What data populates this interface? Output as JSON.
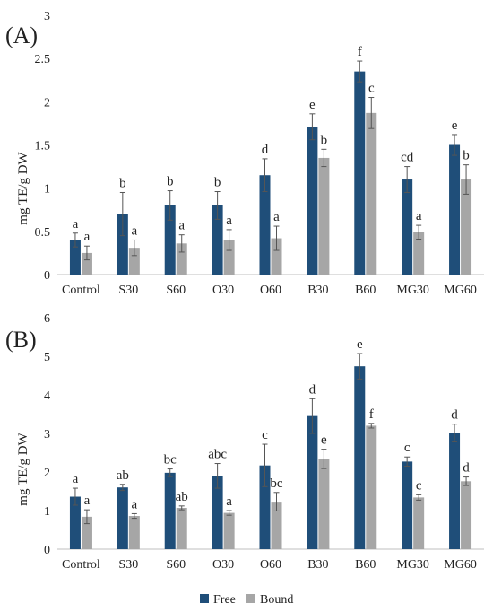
{
  "chart_data": [
    {
      "panel_label": "(A)",
      "type": "bar",
      "categories": [
        "Control",
        "S30",
        "S60",
        "O30",
        "O60",
        "B30",
        "B60",
        "MG30",
        "MG60"
      ],
      "ylabel": "mg TE/g DW",
      "ylim": [
        0,
        3
      ],
      "yticks": [
        "0",
        "0.5",
        "1",
        "1.5",
        "2",
        "2.5",
        "3"
      ],
      "grid": false,
      "series": [
        {
          "name": "Free",
          "color": "#1f4e79",
          "values": [
            0.4,
            0.7,
            0.8,
            0.8,
            1.15,
            1.71,
            2.35,
            1.1,
            1.5
          ],
          "errors": [
            0.08,
            0.25,
            0.17,
            0.16,
            0.19,
            0.15,
            0.12,
            0.15,
            0.12
          ],
          "letters": [
            "a",
            "b",
            "b",
            "b",
            "d",
            "e",
            "f",
            "cd",
            "e"
          ]
        },
        {
          "name": "Bound",
          "color": "#a6a6a6",
          "values": [
            0.25,
            0.31,
            0.36,
            0.4,
            0.42,
            1.35,
            1.87,
            0.49,
            1.1
          ],
          "errors": [
            0.08,
            0.09,
            0.1,
            0.12,
            0.14,
            0.1,
            0.18,
            0.08,
            0.17
          ],
          "letters": [
            "a",
            "a",
            "a",
            "a",
            "a",
            "b",
            "c",
            "a",
            "b"
          ]
        }
      ]
    },
    {
      "panel_label": "(B)",
      "type": "bar",
      "categories": [
        "Control",
        "S30",
        "S60",
        "O30",
        "O60",
        "B30",
        "B60",
        "MG30",
        "MG60"
      ],
      "ylabel": "mg TE/g DW",
      "ylim": [
        0,
        6
      ],
      "yticks": [
        "0",
        "1",
        "2",
        "3",
        "4",
        "5",
        "6"
      ],
      "grid": false,
      "series": [
        {
          "name": "Free",
          "color": "#1f4e79",
          "values": [
            1.36,
            1.6,
            1.98,
            1.9,
            2.17,
            3.45,
            4.74,
            2.27,
            3.02
          ],
          "errors": [
            0.22,
            0.08,
            0.1,
            0.32,
            0.55,
            0.45,
            0.33,
            0.12,
            0.22
          ],
          "letters": [
            "a",
            "ab",
            "bc",
            "abc",
            "c",
            "d",
            "e",
            "c",
            "d"
          ]
        },
        {
          "name": "Bound",
          "color": "#a6a6a6",
          "values": [
            0.84,
            0.86,
            1.07,
            0.94,
            1.23,
            2.34,
            3.2,
            1.34,
            1.76
          ],
          "errors": [
            0.18,
            0.06,
            0.05,
            0.06,
            0.24,
            0.25,
            0.06,
            0.07,
            0.11
          ],
          "letters": [
            "a",
            "a",
            "ab",
            "a",
            "bc",
            "e",
            "f",
            "c",
            "d"
          ]
        }
      ]
    }
  ],
  "legend": {
    "placement": "bottom-center",
    "items": [
      {
        "label": "Free",
        "color": "#1f4e79"
      },
      {
        "label": "Bound",
        "color": "#a6a6a6"
      }
    ]
  }
}
